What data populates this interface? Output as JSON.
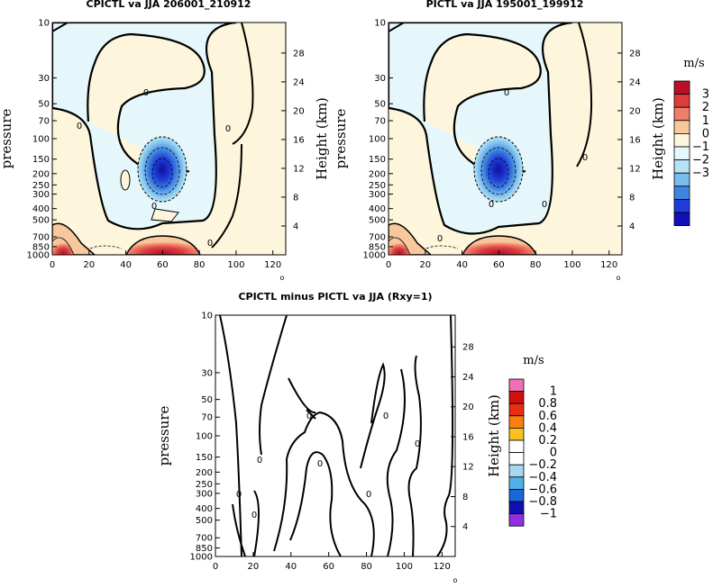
{
  "chart_data": [
    {
      "type": "heatmap",
      "title": "CPICTL va JJA 206001_210912",
      "ylabel": "pressure",
      "ylabel_right": "Height (km)",
      "x_ticks": [
        0,
        20,
        40,
        60,
        80,
        100,
        120
      ],
      "y_ticks": [
        10,
        30,
        50,
        70,
        100,
        150,
        200,
        250,
        300,
        400,
        500,
        700,
        850,
        1000
      ],
      "y_right_ticks": [
        4,
        8,
        12,
        16,
        20,
        24,
        28
      ],
      "xlim": [
        0,
        127
      ],
      "ylim": [
        1000,
        10
      ],
      "scale": "log",
      "x_corner_label": "o",
      "contour_label": "0",
      "features": [
        {
          "kind": "min",
          "x": 60,
          "p": 200,
          "value": -3
        },
        {
          "kind": "max",
          "x": 63,
          "p": 950,
          "value": 2
        },
        {
          "kind": "max",
          "x": 7,
          "p": 900,
          "value": 2
        }
      ]
    },
    {
      "type": "heatmap",
      "title": "PICTL va JJA 195001_199912",
      "ylabel": "pressure",
      "ylabel_right": "Height (km)",
      "x_ticks": [
        0,
        20,
        40,
        60,
        80,
        100,
        120
      ],
      "y_ticks": [
        10,
        30,
        50,
        70,
        100,
        150,
        200,
        250,
        300,
        400,
        500,
        700,
        850,
        1000
      ],
      "y_right_ticks": [
        4,
        8,
        12,
        16,
        20,
        24,
        28
      ],
      "xlim": [
        0,
        127
      ],
      "ylim": [
        1000,
        10
      ],
      "scale": "log",
      "x_corner_label": "o",
      "contour_label": "0",
      "colorbar": {
        "unit": "m/s",
        "labels": [
          "3",
          "2",
          "1",
          "0",
          "−1",
          "−2",
          "−3"
        ],
        "colors": [
          "#b8102a",
          "#db3c3c",
          "#f07f68",
          "#f8c89c",
          "#fdf6dc",
          "#e6f7fb",
          "#b6e4f6",
          "#79bcee",
          "#3f85e0",
          "#1f3ed8",
          "#1010b8"
        ]
      }
    },
    {
      "type": "heatmap",
      "title": "CPICTL minus PICTL va JJA (Rxy=1)",
      "ylabel": "pressure",
      "ylabel_right": "Height (km)",
      "x_ticks": [
        0,
        20,
        40,
        60,
        80,
        100,
        120
      ],
      "y_ticks": [
        10,
        30,
        50,
        70,
        100,
        150,
        200,
        250,
        300,
        400,
        500,
        700,
        850,
        1000
      ],
      "y_right_ticks": [
        4,
        8,
        12,
        16,
        20,
        24,
        28
      ],
      "xlim": [
        0,
        127
      ],
      "ylim": [
        1000,
        10
      ],
      "scale": "log",
      "x_corner_label": "o",
      "contour_label": "0",
      "colorbar": {
        "unit": "m/s",
        "labels": [
          "1",
          "0.8",
          "0.6",
          "0.4",
          "0.2",
          "0",
          "−0.2",
          "−0.4",
          "−0.6",
          "−0.8",
          "−1"
        ],
        "colors": [
          "#f070b8",
          "#d01010",
          "#e83010",
          "#f88010",
          "#f8c020",
          "#ffffff",
          "#ffffff",
          "#a8d8f0",
          "#50b0e8",
          "#1868d8",
          "#1010b0",
          "#9030e0"
        ]
      }
    }
  ]
}
